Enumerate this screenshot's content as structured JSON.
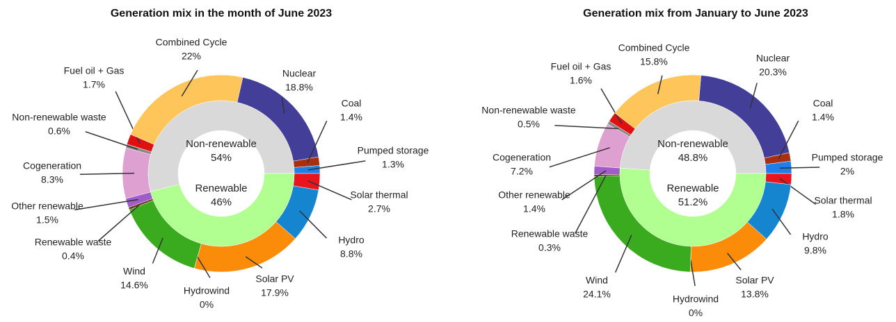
{
  "chart_data": [
    {
      "type": "pie",
      "title": "Generation mix in the month of June 2023",
      "categories": [
        "Nuclear",
        "Coal",
        "Pumped storage",
        "Solar thermal",
        "Hydro",
        "Solar PV",
        "Hydrowind",
        "Wind",
        "Renewable waste",
        "Other renewable",
        "Cogeneration",
        "Non-renewable waste",
        "Fuel oil + Gas",
        "Combined Cycle"
      ],
      "values": [
        18.8,
        1.4,
        1.3,
        2.7,
        8.8,
        17.9,
        0,
        14.6,
        0.4,
        1.5,
        8.3,
        0.6,
        1.7,
        22
      ],
      "value_labels": [
        "18.8%",
        "1.4%",
        "1.3%",
        "2.7%",
        "8.8%",
        "17.9%",
        "0%",
        "14.6%",
        "0.4%",
        "1.5%",
        "8.3%",
        "0.6%",
        "1.7%",
        "22%"
      ],
      "colors": [
        "#433e98",
        "#a8300f",
        "#1e7fe8",
        "#e8141e",
        "#1585d0",
        "#fb8c09",
        "#4a90c0",
        "#3aab1e",
        "#6a3d15",
        "#a05cc8",
        "#dda0d0",
        "#888888",
        "#e01010",
        "#fdc55a"
      ],
      "inner": {
        "categories": [
          "Non-renewable",
          "Renewable"
        ],
        "values": [
          54,
          46
        ],
        "value_labels": [
          "54%",
          "46%"
        ],
        "colors": [
          "#d9d9d9",
          "#b0ff90"
        ]
      }
    },
    {
      "type": "pie",
      "title": "Generation mix from January to June 2023",
      "categories": [
        "Nuclear",
        "Coal",
        "Pumped storage",
        "Solar thermal",
        "Hydro",
        "Solar PV",
        "Hydrowind",
        "Wind",
        "Renewable waste",
        "Other renewable",
        "Cogeneration",
        "Non-renewable waste",
        "Fuel oil + Gas",
        "Combined Cycle"
      ],
      "values": [
        20.3,
        1.4,
        2,
        1.8,
        9.8,
        13.8,
        0,
        24.1,
        0.3,
        1.4,
        7.2,
        0.5,
        1.6,
        15.8
      ],
      "value_labels": [
        "20.3%",
        "1.4%",
        "2%",
        "1.8%",
        "9.8%",
        "13.8%",
        "0%",
        "24.1%",
        "0.3%",
        "1.4%",
        "7.2%",
        "0.5%",
        "1.6%",
        "15.8%"
      ],
      "colors": [
        "#433e98",
        "#a8300f",
        "#1e7fe8",
        "#e8141e",
        "#1585d0",
        "#fb8c09",
        "#4a90c0",
        "#3aab1e",
        "#6a3d15",
        "#a05cc8",
        "#dda0d0",
        "#888888",
        "#e01010",
        "#fdc55a"
      ],
      "inner": {
        "categories": [
          "Non-renewable",
          "Renewable"
        ],
        "values": [
          48.8,
          51.2
        ],
        "value_labels": [
          "48.8%",
          "51.2%"
        ],
        "colors": [
          "#d9d9d9",
          "#b0ff90"
        ]
      }
    }
  ]
}
